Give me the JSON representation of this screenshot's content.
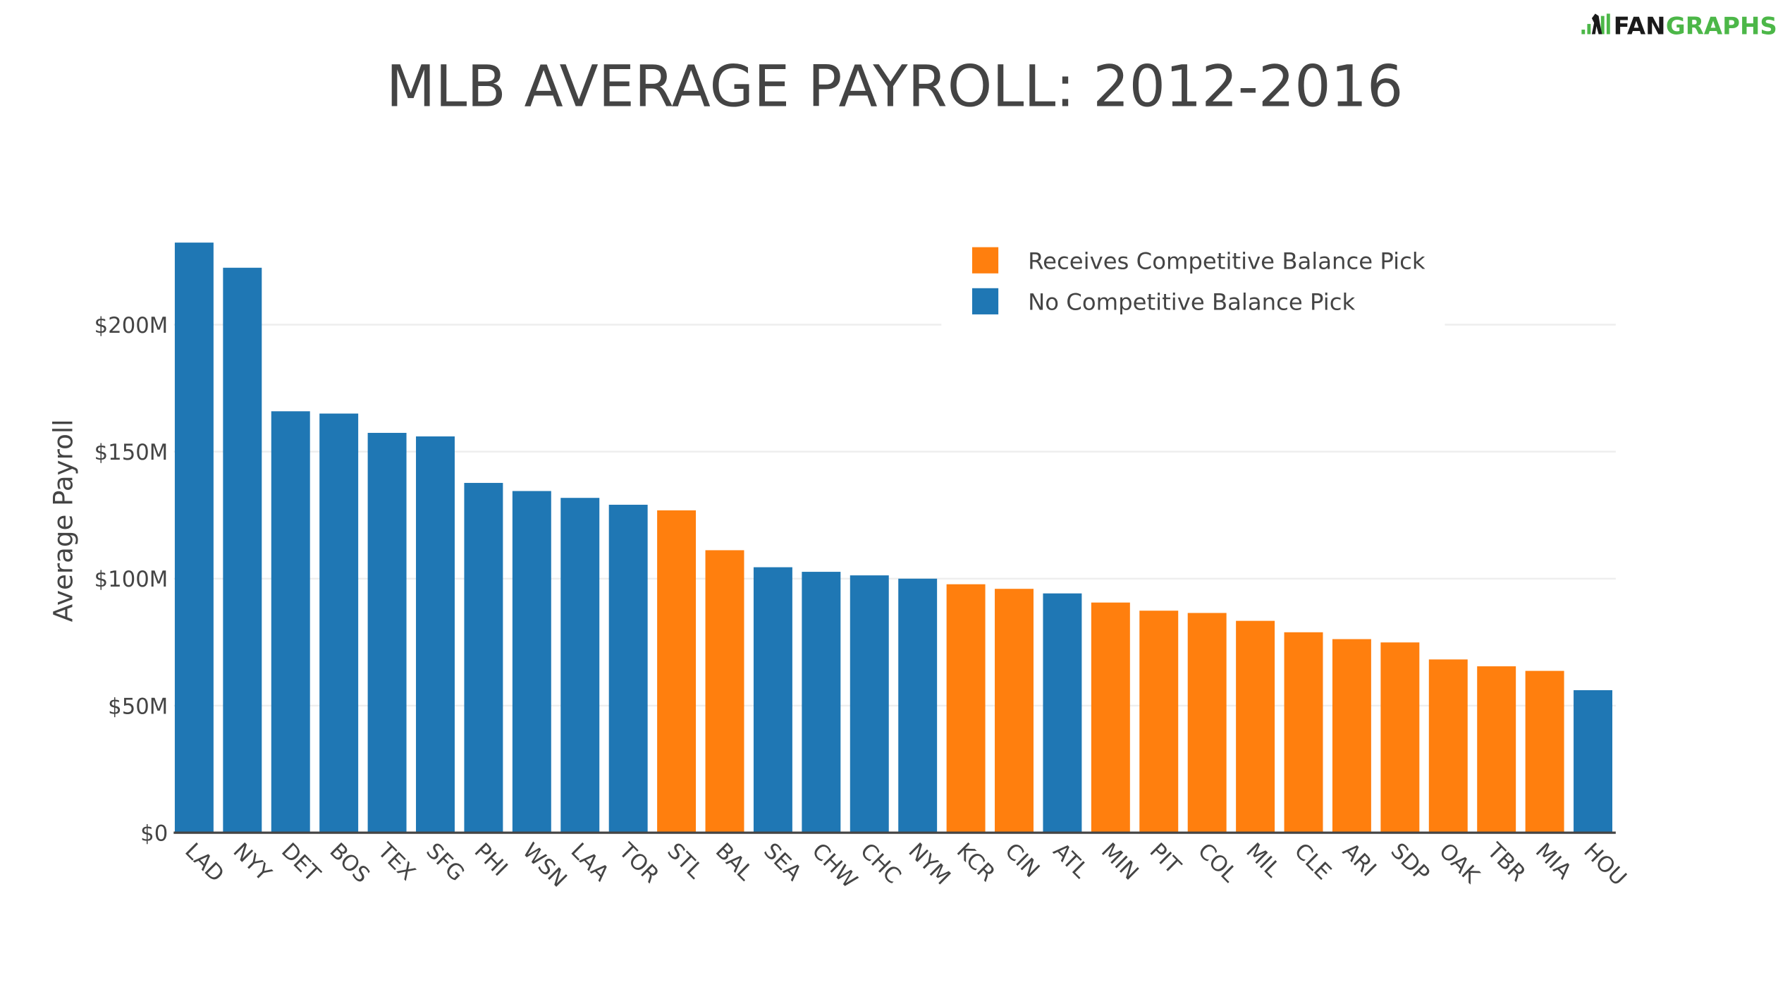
{
  "logo": {
    "text_dark": "FAN",
    "text_green": "GRAPHS",
    "green": "#4cb748",
    "dark": "#1a1a1a"
  },
  "chart_data": {
    "type": "bar",
    "title": "MLB AVERAGE PAYROLL: 2012-2016",
    "xlabel": "",
    "ylabel": "Average Payroll",
    "ylim": [
      0,
      235
    ],
    "yticks": [
      0,
      50,
      100,
      150,
      200
    ],
    "ytick_labels": [
      "$0",
      "$50M",
      "$100M",
      "$150M",
      "$200M"
    ],
    "unit": "millions USD",
    "grid": true,
    "legend_placement": "top-right",
    "legend": [
      {
        "name": "Receives Competitive Balance Pick",
        "color": "#ff7f0e"
      },
      {
        "name": "No Competitive Balance Pick",
        "color": "#1f77b4"
      }
    ],
    "categories": [
      "LAD",
      "NYY",
      "DET",
      "BOS",
      "TEX",
      "SFG",
      "PHI",
      "WSN",
      "LAA",
      "TOR",
      "STL",
      "BAL",
      "SEA",
      "CHW",
      "CHC",
      "NYM",
      "KCR",
      "CIN",
      "ATL",
      "MIN",
      "PIT",
      "COL",
      "MIL",
      "CLE",
      "ARI",
      "SDP",
      "OAK",
      "TBR",
      "MIA",
      "HOU"
    ],
    "values": [
      232.3,
      222.4,
      165.9,
      165.0,
      157.4,
      156.0,
      137.7,
      134.5,
      131.8,
      129.1,
      126.9,
      111.2,
      104.5,
      102.7,
      101.3,
      100.0,
      97.8,
      96.0,
      94.2,
      90.6,
      87.4,
      86.5,
      83.4,
      78.9,
      76.2,
      74.9,
      68.2,
      65.5,
      63.7,
      56.1
    ],
    "group": [
      1,
      1,
      1,
      1,
      1,
      1,
      1,
      1,
      1,
      1,
      0,
      0,
      1,
      1,
      1,
      1,
      0,
      0,
      1,
      0,
      0,
      0,
      0,
      0,
      0,
      0,
      0,
      0,
      0,
      1
    ]
  }
}
